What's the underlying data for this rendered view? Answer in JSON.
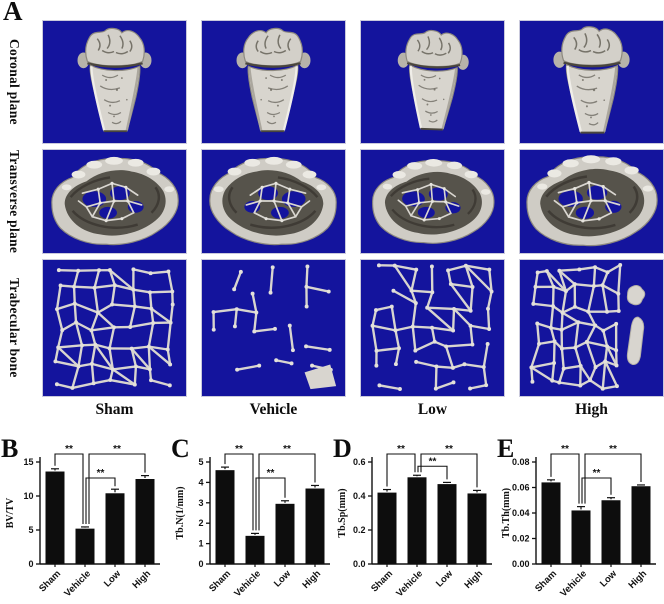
{
  "panel_a": {
    "label": "A",
    "row_labels": [
      "Coronal plane",
      "Transverse plane",
      "Trabecular bone"
    ],
    "column_labels": [
      "Sham",
      "Vehicle",
      "Low",
      "High"
    ],
    "background_color": "#14149d",
    "bone_light_color": "#d8d5cf",
    "bone_dark_color": "#56534b",
    "trabecular_patterns": [
      {
        "group": "Sham",
        "density": 0.92,
        "seed": 11
      },
      {
        "group": "Vehicle",
        "density": 0.3,
        "seed": 7,
        "blob": true
      },
      {
        "group": "Low",
        "density": 0.62,
        "seed": 3
      },
      {
        "group": "High",
        "density": 0.88,
        "seed": 5,
        "fragments": true
      }
    ]
  },
  "chart_data": [
    {
      "type": "bar",
      "panel_label": "B",
      "ylabel": "BV/TV",
      "categories": [
        "Sham",
        "Vehicle",
        "Low",
        "High"
      ],
      "values": [
        13.6,
        5.2,
        10.4,
        12.5
      ],
      "errors": [
        0.4,
        0.25,
        0.6,
        0.5
      ],
      "ylim": [
        0,
        15
      ],
      "yticks": [
        0,
        5,
        10,
        15
      ],
      "ytick_labels": [
        "0",
        "5",
        "10",
        "15"
      ],
      "bar_color": "#0d0d0d",
      "grid": false,
      "significance": [
        {
          "a": 0,
          "b": 1,
          "label": "**",
          "level": 2
        },
        {
          "a": 1,
          "b": 2,
          "label": "**",
          "level": 1
        },
        {
          "a": 1,
          "b": 3,
          "label": "**",
          "level": 2
        }
      ]
    },
    {
      "type": "bar",
      "panel_label": "C",
      "ylabel": "Tb.N(1/mm)",
      "categories": [
        "Sham",
        "Vehicle",
        "Low",
        "High"
      ],
      "values": [
        4.6,
        1.38,
        2.95,
        3.7
      ],
      "errors": [
        0.15,
        0.12,
        0.15,
        0.15
      ],
      "ylim": [
        0,
        5
      ],
      "yticks": [
        0,
        1,
        2,
        3,
        4,
        5
      ],
      "ytick_labels": [
        "0",
        "1",
        "2",
        "3",
        "4",
        "5"
      ],
      "bar_color": "#0d0d0d",
      "grid": false,
      "significance": [
        {
          "a": 0,
          "b": 1,
          "label": "**",
          "level": 2
        },
        {
          "a": 1,
          "b": 2,
          "label": "**",
          "level": 1
        },
        {
          "a": 1,
          "b": 3,
          "label": "**",
          "level": 2
        }
      ]
    },
    {
      "type": "bar",
      "panel_label": "D",
      "ylabel": "Tb.Sp(mm)",
      "categories": [
        "Sham",
        "Vehicle",
        "Low",
        "High"
      ],
      "values": [
        0.42,
        0.51,
        0.47,
        0.415
      ],
      "errors": [
        0.018,
        0.012,
        0.01,
        0.018
      ],
      "ylim": [
        0,
        0.6
      ],
      "yticks": [
        0,
        0.2,
        0.4,
        0.6
      ],
      "ytick_labels": [
        "0.0",
        "0.2",
        "0.4",
        "0.6"
      ],
      "bar_color": "#0d0d0d",
      "grid": false,
      "significance": [
        {
          "a": 0,
          "b": 1,
          "label": "**",
          "level": 2
        },
        {
          "a": 1,
          "b": 2,
          "label": "**",
          "level": 1
        },
        {
          "a": 1,
          "b": 3,
          "label": "**",
          "level": 2
        }
      ]
    },
    {
      "type": "bar",
      "panel_label": "E",
      "ylabel": "Tb.Th(mm)",
      "categories": [
        "Sham",
        "Vehicle",
        "Low",
        "High"
      ],
      "values": [
        0.064,
        0.042,
        0.05,
        0.061
      ],
      "errors": [
        0.002,
        0.003,
        0.002,
        0.001
      ],
      "ylim": [
        0,
        0.08
      ],
      "yticks": [
        0,
        0.02,
        0.04,
        0.06,
        0.08
      ],
      "ytick_labels": [
        "0.00",
        "0.02",
        "0.04",
        "0.06",
        "0.08"
      ],
      "bar_color": "#0d0d0d",
      "grid": false,
      "significance": [
        {
          "a": 0,
          "b": 1,
          "label": "**",
          "level": 2
        },
        {
          "a": 1,
          "b": 2,
          "label": "**",
          "level": 1
        },
        {
          "a": 1,
          "b": 3,
          "label": "**",
          "level": 2
        }
      ]
    }
  ]
}
